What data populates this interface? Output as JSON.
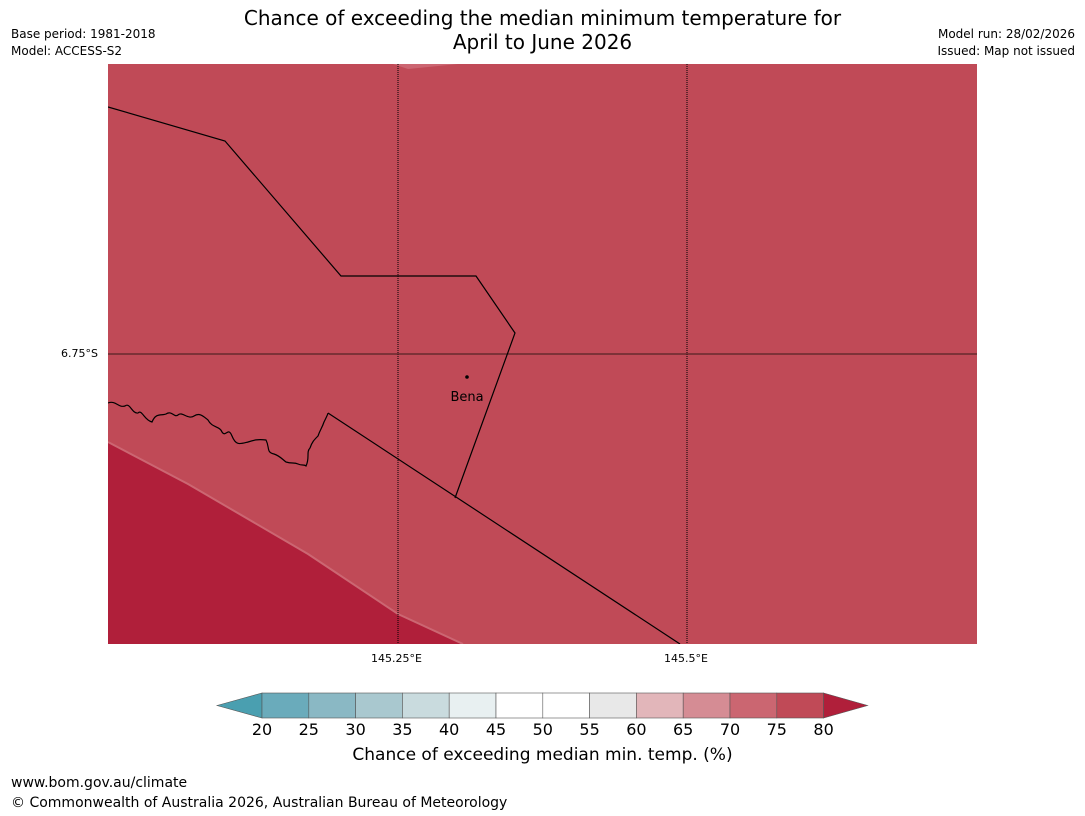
{
  "title_line1": "Chance of exceeding the median minimum temperature for",
  "title_line2": "April to June 2026",
  "meta_left": [
    "Base period: 1981-2018",
    "Model: ACCESS-S2"
  ],
  "meta_right": [
    "Model run: 28/02/2026",
    "Issued: Map not issued"
  ],
  "map": {
    "lat_labels": [
      "6.75°S"
    ],
    "lon_labels": [
      "145.25°E",
      "145.5°E"
    ],
    "place": "Bena",
    "fill_colors": {
      "band_75_80": "#c04a57",
      "band_80_plus": "#b01f3a",
      "band_70_75": "#cc6672"
    }
  },
  "colorbar": {
    "ticks": [
      "20",
      "25",
      "30",
      "35",
      "40",
      "45",
      "50",
      "55",
      "60",
      "65",
      "70",
      "75",
      "80"
    ],
    "colors": [
      "#4a9fb0",
      "#6aabbb",
      "#8ab8c4",
      "#a9c8cf",
      "#c9dbde",
      "#e8f0f1",
      "#ffffff",
      "#ffffff",
      "#e8e8e8",
      "#e2b6ba",
      "#d58c94",
      "#cb6671",
      "#c04a57",
      "#b01f3a"
    ],
    "label": "Chance of exceeding median min. temp. (%)"
  },
  "footer": {
    "url": "www.bom.gov.au/climate",
    "copyright": "© Commonwealth of Australia 2026, Australian Bureau of Meteorology"
  }
}
